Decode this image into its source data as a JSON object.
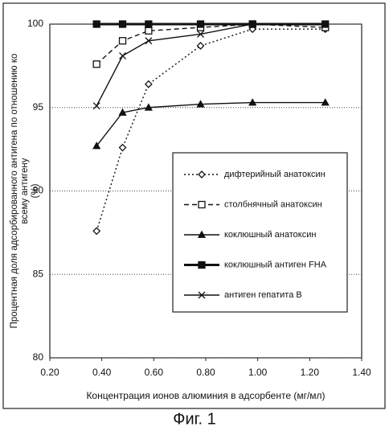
{
  "chart_data": {
    "type": "line",
    "ylabel": [
      "Процентная доля адсорбированного антигена по отношению ко",
      "всему антигену",
      "(%)"
    ],
    "xlabel": "Концентрация ионов алюминия в адсорбенте (мг/мл)",
    "caption": "Фиг. 1",
    "x": [
      0.38,
      0.48,
      0.58,
      0.78,
      0.98,
      1.26
    ],
    "xlim": [
      0.2,
      1.4
    ],
    "xticks": [
      {
        "value": 0.2,
        "label": "0.20"
      },
      {
        "value": 0.4,
        "label": "0.40"
      },
      {
        "value": 0.6,
        "label": "0.60"
      },
      {
        "value": 0.8,
        "label": "0.80"
      },
      {
        "value": 1.0,
        "label": "1.00"
      },
      {
        "value": 1.2,
        "label": "1.20"
      },
      {
        "value": 1.4,
        "label": "1.40"
      }
    ],
    "ylim": [
      80,
      100
    ],
    "yticks": [
      80,
      85,
      90,
      95,
      100
    ],
    "grid": true,
    "legend": "lower right",
    "series": [
      {
        "name": "дифтерийный анатоксин",
        "color": "#111111",
        "marker": "diamond",
        "linestyle": "dotted",
        "values": [
          87.6,
          92.6,
          96.4,
          98.7,
          99.7,
          99.7
        ]
      },
      {
        "name": "столбнячный анатоксин",
        "color": "#111111",
        "marker": "square-open",
        "linestyle": "dashed",
        "values": [
          97.6,
          99.0,
          99.6,
          99.8,
          100,
          99.8
        ]
      },
      {
        "name": "коклюшный анатоксин",
        "color": "#111111",
        "marker": "triangle",
        "linestyle": "solid",
        "values": [
          92.7,
          94.7,
          95.0,
          95.2,
          95.3,
          95.3
        ]
      },
      {
        "name": "коклюшный антиген FHA",
        "color": "#111111",
        "marker": "square",
        "linestyle": "thick",
        "values": [
          100,
          100,
          100,
          100,
          100,
          100
        ]
      },
      {
        "name": "антиген гепатита B",
        "color": "#111111",
        "marker": "x",
        "linestyle": "solid",
        "values": [
          95.1,
          98.1,
          99.0,
          99.4,
          100,
          100
        ]
      }
    ]
  }
}
